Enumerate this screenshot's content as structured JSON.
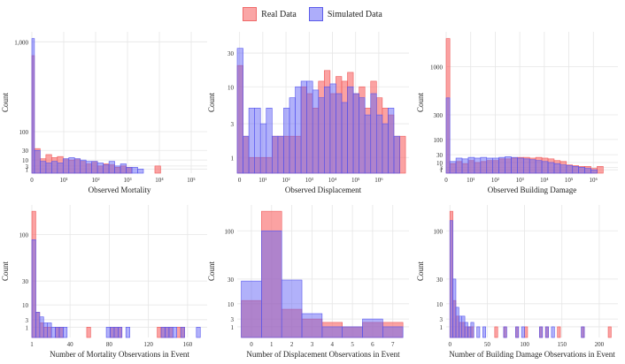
{
  "legend": {
    "items": [
      {
        "label": "Real Data",
        "color": "#f8766d"
      },
      {
        "label": "Simulated Data",
        "color": "#6b6bf5"
      }
    ]
  },
  "colors": {
    "real_fill": "rgba(248,100,100,0.6)",
    "real_stroke": "#ee5a5a",
    "sim_fill": "rgba(100,100,245,0.5)",
    "sim_stroke": "#5555ee",
    "grid": "#e6e6e6"
  },
  "chart_data": [
    {
      "type": "bar",
      "id": "mortality-hist",
      "xlabel": "Observed Mortality",
      "ylabel": "Count",
      "y_scale": "sqrt",
      "y_ticks": [
        1,
        3,
        10,
        30,
        100,
        1000
      ],
      "y_tick_labels": [
        "1",
        "3",
        "10",
        "30",
        "100",
        "1,000"
      ],
      "x_ticks": [
        0,
        1,
        2,
        3,
        4,
        5
      ],
      "x_tick_labels": [
        "0",
        "10¹",
        "10²",
        "10³",
        "10⁴",
        "10⁵"
      ],
      "x_range": [
        0,
        5.5
      ],
      "bin_width": 0.18,
      "bin_starts": [
        -0.1,
        0.08,
        0.26,
        0.44,
        0.62,
        0.8,
        0.98,
        1.16,
        1.34,
        1.52,
        1.7,
        1.88,
        2.06,
        2.24,
        2.42,
        2.6,
        2.78,
        2.96,
        3.14,
        3.32,
        3.5,
        3.68,
        3.86,
        4.04,
        4.22,
        4.4,
        4.58,
        4.76,
        4.94
      ],
      "series": [
        {
          "name": "Real Data",
          "values": [
            800,
            35,
            12,
            20,
            14,
            16,
            12,
            10,
            12,
            8,
            5,
            8,
            3,
            5,
            4,
            2,
            3,
            2,
            0,
            0,
            0,
            0,
            3,
            0,
            0,
            0,
            0,
            0,
            0
          ]
        },
        {
          "name": "Simulated Data",
          "values": [
            1050,
            30,
            8,
            6,
            8,
            6,
            12,
            14,
            12,
            10,
            8,
            8,
            6,
            4,
            8,
            3,
            5,
            2,
            2,
            1,
            0,
            0,
            0,
            0,
            0,
            0,
            0,
            0,
            0
          ]
        }
      ]
    },
    {
      "type": "bar",
      "id": "displacement-hist",
      "xlabel": "Observed Displacement",
      "ylabel": "Count",
      "y_scale": "log",
      "y_ticks": [
        1,
        3,
        10,
        30
      ],
      "y_tick_labels": [
        "1",
        "3",
        "10",
        "30"
      ],
      "y_range": [
        0.6,
        60
      ],
      "x_ticks": [
        0,
        1,
        2,
        3,
        4,
        5,
        6
      ],
      "x_tick_labels": [
        "0",
        "10¹",
        "10²",
        "10³",
        "10⁴",
        "10⁵",
        "10⁶"
      ],
      "x_range": [
        -0.1,
        7.3
      ],
      "bin_width": 0.25,
      "bin_starts": [
        -0.1,
        0.15,
        0.4,
        0.65,
        0.9,
        1.15,
        1.4,
        1.65,
        1.9,
        2.15,
        2.4,
        2.65,
        2.9,
        3.15,
        3.4,
        3.65,
        3.9,
        4.15,
        4.4,
        4.65,
        4.9,
        5.15,
        5.4,
        5.65,
        5.9,
        6.15,
        6.4,
        6.65,
        6.9
      ],
      "series": [
        {
          "name": "Real Data",
          "values": [
            20,
            2,
            1,
            1,
            1,
            1,
            2,
            2,
            2,
            2,
            2,
            10,
            8,
            5,
            12,
            17,
            8,
            14,
            12,
            16,
            8,
            10,
            5,
            12,
            7,
            5,
            4,
            2,
            2
          ]
        },
        {
          "name": "Simulated Data",
          "values": [
            35,
            2,
            5,
            5,
            3,
            5,
            2,
            2,
            5,
            7,
            10,
            12,
            12,
            9,
            7,
            10,
            11,
            8,
            6,
            10,
            8,
            7,
            4,
            8,
            4,
            3,
            5,
            2,
            0
          ]
        }
      ]
    },
    {
      "type": "bar",
      "id": "building-damage-hist",
      "xlabel": "Observed Building Damage",
      "ylabel": "Count",
      "y_scale": "sqrt",
      "y_ticks": [
        1,
        3,
        10,
        30,
        100,
        300,
        1000
      ],
      "y_tick_labels": [
        "1",
        "3",
        "10",
        "30",
        "100",
        "300",
        "1000"
      ],
      "x_ticks": [
        0,
        1,
        2,
        3,
        4,
        5,
        6
      ],
      "x_tick_labels": [
        "0",
        "10¹",
        "10²",
        "10³",
        "10⁴",
        "10⁵",
        "10⁶"
      ],
      "x_range": [
        0,
        7.0
      ],
      "bin_width": 0.25,
      "bin_starts": [
        -0.1,
        0.15,
        0.4,
        0.65,
        0.9,
        1.15,
        1.4,
        1.65,
        1.9,
        2.15,
        2.4,
        2.65,
        2.9,
        3.15,
        3.4,
        3.65,
        3.9,
        4.15,
        4.4,
        4.65,
        4.9,
        5.15,
        5.4,
        5.65,
        5.9,
        6.15
      ],
      "series": [
        {
          "name": "Real Data",
          "values": [
            1600,
            8,
            12,
            8,
            14,
            10,
            12,
            14,
            14,
            18,
            18,
            20,
            22,
            22,
            20,
            22,
            20,
            18,
            14,
            12,
            6,
            5,
            4,
            4,
            2,
            4
          ]
        },
        {
          "name": "Simulated Data",
          "values": [
            500,
            12,
            20,
            18,
            22,
            20,
            22,
            20,
            20,
            22,
            24,
            22,
            20,
            18,
            16,
            14,
            12,
            10,
            8,
            6,
            5,
            4,
            3,
            2,
            1,
            0
          ]
        }
      ]
    },
    {
      "type": "bar",
      "id": "mortality-obs-hist",
      "xlabel": "Number of Mortality Observations in Event",
      "ylabel": "Count",
      "y_scale": "sqrt",
      "y_ticks": [
        1,
        3,
        10,
        30,
        100
      ],
      "y_tick_labels": [
        "1",
        "3",
        "10",
        "30",
        "100"
      ],
      "x_ticks": [
        1,
        40,
        80,
        120,
        160
      ],
      "x_tick_labels": [
        "1",
        "40",
        "80",
        "120",
        "160"
      ],
      "x_range": [
        1,
        180
      ],
      "bin_width": 4,
      "bin_starts": [
        1,
        5,
        9,
        13,
        17,
        21,
        25,
        29,
        33,
        57,
        77,
        81,
        85,
        89,
        97,
        129,
        133,
        137,
        141,
        145,
        149,
        153,
        169
      ],
      "series": [
        {
          "name": "Real Data",
          "values": [
            150,
            6,
            2,
            1,
            1,
            0,
            1,
            1,
            0,
            1,
            0,
            1,
            1,
            1,
            0,
            1,
            1,
            1,
            1,
            0,
            1,
            1,
            0
          ]
        },
        {
          "name": "Simulated Data",
          "values": [
            90,
            6,
            4,
            2,
            2,
            1,
            1,
            1,
            1,
            0,
            1,
            1,
            1,
            1,
            1,
            0,
            1,
            1,
            1,
            1,
            0,
            1,
            1
          ]
        }
      ]
    },
    {
      "type": "bar",
      "id": "displacement-obs-hist",
      "xlabel": "Number of Displacement Observations in Event",
      "ylabel": "Count",
      "y_scale": "sqrt",
      "y_ticks": [
        1,
        3,
        10,
        30,
        100
      ],
      "y_tick_labels": [
        "1",
        "3",
        "10",
        "30",
        "100"
      ],
      "x_ticks": [
        0,
        1,
        2,
        3,
        4,
        5,
        6,
        7
      ],
      "x_tick_labels": [
        "0",
        "1",
        "2",
        "3",
        "4",
        "5",
        "6",
        "7"
      ],
      "x_range": [
        -0.7,
        7.8
      ],
      "bin_width": 1,
      "bin_starts": [
        -0.5,
        0.5,
        1.5,
        2.5,
        3.5,
        4.5,
        5.5,
        6.5
      ],
      "series": [
        {
          "name": "Real Data",
          "values": [
            12,
            140,
            7,
            3,
            2,
            1,
            2,
            2
          ]
        },
        {
          "name": "Simulated Data",
          "values": [
            28,
            100,
            29,
            5,
            1,
            1,
            3,
            1
          ]
        }
      ]
    },
    {
      "type": "bar",
      "id": "building-obs-hist",
      "xlabel": "Number of Building Damage Observations in Event",
      "ylabel": "Count",
      "y_scale": "sqrt",
      "y_ticks": [
        1,
        3,
        10,
        30,
        100
      ],
      "y_tick_labels": [
        "1",
        "3",
        "10",
        "30",
        "100"
      ],
      "x_ticks": [
        0,
        50,
        100,
        150,
        200
      ],
      "x_tick_labels": [
        "0",
        "50",
        "100",
        "150",
        "200"
      ],
      "x_range": [
        -5,
        225
      ],
      "bin_width": 4,
      "bin_starts": [
        0,
        4,
        8,
        12,
        16,
        20,
        24,
        28,
        36,
        44,
        60,
        72,
        88,
        96,
        100,
        120,
        128,
        136,
        144,
        176,
        212
      ],
      "series": [
        {
          "name": "Real Data",
          "values": [
            140,
            12,
            4,
            2,
            2,
            1,
            1,
            1,
            0,
            0,
            1,
            1,
            1,
            0,
            1,
            1,
            1,
            0,
            1,
            1,
            1
          ]
        },
        {
          "name": "Simulated Data",
          "values": [
            120,
            30,
            8,
            4,
            4,
            2,
            1,
            2,
            1,
            1,
            0,
            1,
            1,
            1,
            0,
            1,
            1,
            1,
            0,
            1,
            0
          ]
        }
      ]
    }
  ]
}
